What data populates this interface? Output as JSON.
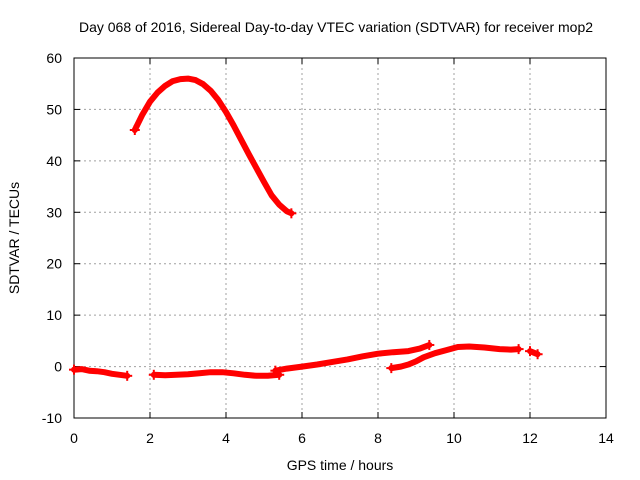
{
  "chart_data": {
    "type": "line",
    "title": "Day 068 of 2016, Sidereal Day-to-day VTEC variation (SDTVAR) for receiver mop2",
    "xlabel": "GPS time / hours",
    "ylabel": "SDTVAR / TECUs",
    "xlim": [
      0,
      14
    ],
    "ylim": [
      -10,
      60
    ],
    "xticks": [
      0,
      2,
      4,
      6,
      8,
      10,
      12,
      14
    ],
    "yticks": [
      -10,
      0,
      10,
      20,
      30,
      40,
      50,
      60
    ],
    "grid": true,
    "legend": "none",
    "color": "#ff0000",
    "series": [
      {
        "x": [
          1.6,
          1.8,
          2.0,
          2.2,
          2.4,
          2.6,
          2.8,
          3.0,
          3.2,
          3.4,
          3.6,
          3.8,
          4.0,
          4.2,
          4.4,
          4.6,
          4.8,
          5.0,
          5.2,
          5.4,
          5.6,
          5.72
        ],
        "y": [
          46,
          49,
          51.5,
          53.3,
          54.6,
          55.5,
          55.9,
          56,
          55.7,
          54.9,
          53.6,
          51.8,
          49.5,
          46.9,
          44.1,
          41.3,
          38.6,
          35.9,
          33.3,
          31.5,
          30.2,
          29.8
        ]
      },
      {
        "x": [
          0.0,
          0.2,
          0.4,
          0.6,
          0.8,
          1.0,
          1.2,
          1.4
        ],
        "y": [
          -0.6,
          -0.5,
          -0.8,
          -0.9,
          -1.1,
          -1.4,
          -1.6,
          -1.8
        ]
      },
      {
        "x": [
          2.1,
          2.4,
          2.7,
          3.0,
          3.3,
          3.6,
          3.9,
          4.2,
          4.5,
          4.8,
          5.1,
          5.4
        ],
        "y": [
          -1.6,
          -1.7,
          -1.6,
          -1.5,
          -1.3,
          -1.1,
          -1.1,
          -1.3,
          -1.6,
          -1.8,
          -1.8,
          -1.6
        ]
      },
      {
        "x": [
          5.3,
          5.6,
          6.0,
          6.4,
          6.8,
          7.2,
          7.6,
          8.0,
          8.4,
          8.8,
          9.1,
          9.35
        ],
        "y": [
          -0.8,
          -0.4,
          0.0,
          0.4,
          0.9,
          1.4,
          2.0,
          2.5,
          2.8,
          3.0,
          3.5,
          4.2
        ]
      },
      {
        "x": [
          8.35,
          8.6,
          8.8,
          9.0,
          9.2,
          9.5,
          9.8,
          10.1,
          10.4,
          10.8,
          11.2,
          11.5,
          11.7
        ],
        "y": [
          -0.3,
          0.0,
          0.4,
          1.0,
          1.8,
          2.6,
          3.2,
          3.8,
          3.9,
          3.7,
          3.4,
          3.3,
          3.4
        ]
      },
      {
        "x": [
          12.0,
          12.1,
          12.2
        ],
        "y": [
          3.0,
          2.7,
          2.4
        ]
      }
    ]
  }
}
